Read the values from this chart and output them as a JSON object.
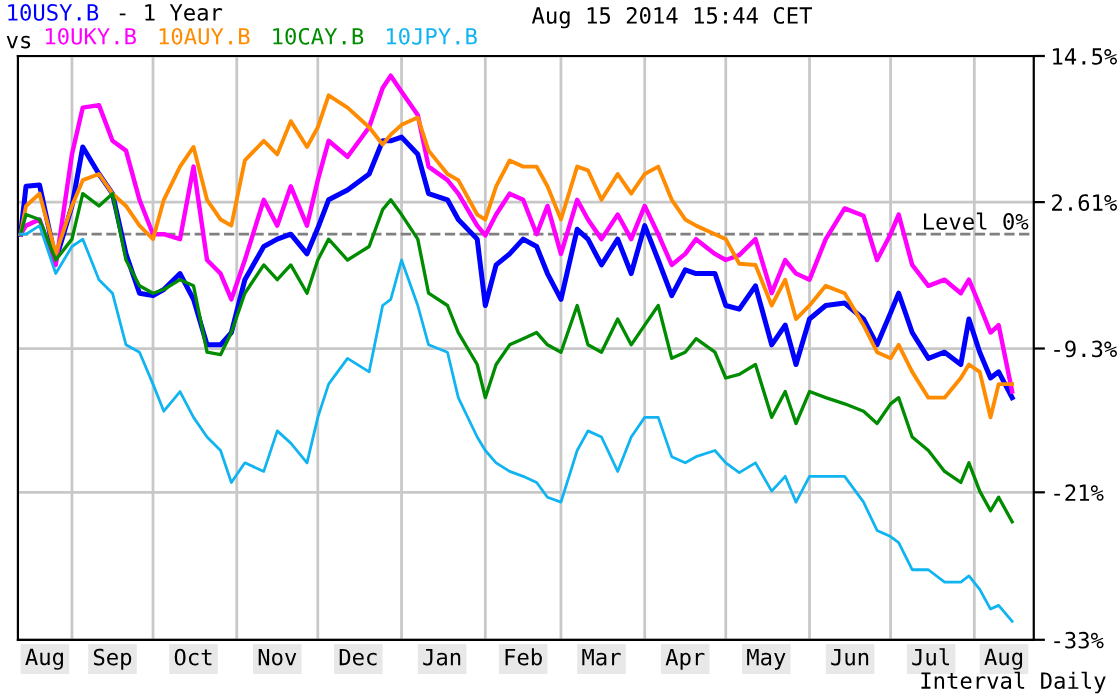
{
  "chart_data": {
    "type": "line",
    "title": "- 1 Year",
    "subtitle": "Aug 15 2014 15:44 CET",
    "legend_title": "vs",
    "x": [
      "2013-08-13",
      "2013-08-15",
      "2013-08-20",
      "2013-08-26",
      "2013-09-01",
      "2013-09-05",
      "2013-09-11",
      "2013-09-16",
      "2013-09-21",
      "2013-09-26",
      "2013-10-01",
      "2013-10-05",
      "2013-10-11",
      "2013-10-16",
      "2013-10-21",
      "2013-10-26",
      "2013-10-30",
      "2013-11-04",
      "2013-11-11",
      "2013-11-16",
      "2013-11-21",
      "2013-11-27",
      "2013-12-01",
      "2013-12-05",
      "2013-12-12",
      "2013-12-20",
      "2013-12-25",
      "2013-12-28",
      "2014-01-01",
      "2014-01-07",
      "2014-01-11",
      "2014-01-18",
      "2014-01-22",
      "2014-01-29",
      "2014-02-01",
      "2014-02-05",
      "2014-02-10",
      "2014-02-15",
      "2014-02-20",
      "2014-02-24",
      "2014-03-01",
      "2014-03-07",
      "2014-03-11",
      "2014-03-16",
      "2014-03-22",
      "2014-03-27",
      "2014-04-01",
      "2014-04-06",
      "2014-04-11",
      "2014-04-16",
      "2014-04-20",
      "2014-04-27",
      "2014-05-01",
      "2014-05-06",
      "2014-05-12",
      "2014-05-18",
      "2014-05-23",
      "2014-05-27",
      "2014-06-01",
      "2014-06-07",
      "2014-06-14",
      "2014-06-21",
      "2014-06-26",
      "2014-07-01",
      "2014-07-04",
      "2014-07-09",
      "2014-07-15",
      "2014-07-21",
      "2014-07-27",
      "2014-07-30",
      "2014-08-03",
      "2014-08-07",
      "2014-08-10",
      "2014-08-15"
    ],
    "series": [
      {
        "name": "10USY.B",
        "color": "#0000ff",
        "values": [
          0,
          3.9,
          4.0,
          -2.1,
          2.3,
          7.1,
          4.9,
          3.3,
          -1.6,
          -4.8,
          -5.0,
          -4.5,
          -3.2,
          -5.3,
          -9.0,
          -9.0,
          -8.0,
          -3.7,
          -1.0,
          -0.4,
          0.0,
          -1.6,
          0.5,
          2.8,
          3.6,
          4.9,
          7.6,
          7.6,
          7.9,
          6.5,
          3.3,
          2.8,
          1.2,
          -0.4,
          -5.8,
          -2.5,
          -1.6,
          -0.4,
          -1.0,
          -3.2,
          -5.3,
          0.4,
          -0.4,
          -2.5,
          -0.4,
          -3.2,
          0.7,
          -2.1,
          -5.0,
          -2.9,
          -3.2,
          -3.2,
          -5.8,
          -6.1,
          -4.2,
          -9.0,
          -7.4,
          -10.6,
          -6.9,
          -5.8,
          -5.6,
          -6.9,
          -9.0,
          -6.4,
          -4.8,
          -8.0,
          -10.1,
          -9.6,
          -10.6,
          -6.9,
          -9.6,
          -11.7,
          -11.2,
          -13.3
        ]
      },
      {
        "name": "10UKY.B",
        "color": "#ff00ff",
        "values": [
          0,
          0.7,
          1.2,
          -2.5,
          6.5,
          10.3,
          10.5,
          7.6,
          6.8,
          2.8,
          0.0,
          0.0,
          -0.4,
          5.5,
          -2.1,
          -3.2,
          -5.3,
          -2.1,
          2.8,
          0.7,
          3.9,
          0.7,
          4.4,
          7.6,
          6.3,
          8.7,
          11.9,
          12.9,
          11.6,
          9.7,
          5.5,
          4.4,
          3.3,
          0.7,
          -0.1,
          1.6,
          3.3,
          2.8,
          0.0,
          2.3,
          -1.6,
          2.8,
          1.2,
          -0.4,
          1.6,
          -0.4,
          2.3,
          0.0,
          -2.5,
          -1.6,
          -0.4,
          -1.6,
          -2.1,
          -1.7,
          -0.4,
          -4.8,
          -2.1,
          -3.2,
          -3.7,
          -0.4,
          2.1,
          1.5,
          -2.1,
          0.0,
          1.6,
          -2.5,
          -4.2,
          -3.7,
          -4.8,
          -3.7,
          -5.8,
          -8.0,
          -7.4,
          -12.8
        ]
      },
      {
        "name": "10AUY.B",
        "color": "#ff8c00",
        "values": [
          0,
          2.3,
          3.3,
          -1.6,
          2.3,
          4.4,
          4.9,
          3.3,
          2.3,
          0.7,
          -0.4,
          2.8,
          5.5,
          7.1,
          2.8,
          1.2,
          0.7,
          6.0,
          7.6,
          6.5,
          9.2,
          7.1,
          8.7,
          11.3,
          10.3,
          8.7,
          7.3,
          8.1,
          8.9,
          9.5,
          6.8,
          4.9,
          4.4,
          1.6,
          1.2,
          3.9,
          6.0,
          5.5,
          5.5,
          3.9,
          1.2,
          5.5,
          5.2,
          2.8,
          4.9,
          3.3,
          4.9,
          5.5,
          2.8,
          1.2,
          0.7,
          0.0,
          -0.4,
          -2.4,
          -2.5,
          -5.8,
          -3.7,
          -6.9,
          -5.8,
          -4.2,
          -4.8,
          -7.4,
          -9.6,
          -10.1,
          -9.0,
          -11.2,
          -13.3,
          -13.3,
          -11.7,
          -10.6,
          -11.2,
          -14.9,
          -12.2,
          -12.2
        ]
      },
      {
        "name": "10CAY.B",
        "color": "#008c00",
        "values": [
          0,
          1.6,
          1.2,
          -2.1,
          -0.4,
          3.3,
          2.3,
          3.3,
          -2.1,
          -4.2,
          -4.8,
          -4.5,
          -3.7,
          -4.2,
          -9.6,
          -9.8,
          -8.0,
          -4.8,
          -2.5,
          -3.7,
          -2.5,
          -4.8,
          -2.1,
          -0.4,
          -2.1,
          -1.0,
          2.0,
          2.8,
          1.6,
          -0.4,
          -4.8,
          -5.8,
          -8.0,
          -10.6,
          -13.3,
          -10.6,
          -9.0,
          -8.5,
          -8.0,
          -9.0,
          -9.6,
          -5.8,
          -9.0,
          -9.6,
          -6.9,
          -9.0,
          -7.4,
          -5.8,
          -10.1,
          -9.6,
          -8.5,
          -9.6,
          -11.7,
          -11.4,
          -10.6,
          -14.9,
          -12.8,
          -15.4,
          -12.8,
          -13.3,
          -13.8,
          -14.4,
          -15.4,
          -13.8,
          -13.3,
          -16.5,
          -17.6,
          -19.3,
          -20.2,
          -18.6,
          -20.9,
          -22.5,
          -21.4,
          -23.4
        ]
      },
      {
        "name": "10JPY.B",
        "color": "#10b4f0",
        "values": [
          0,
          0.0,
          0.7,
          -3.2,
          -1.0,
          -0.4,
          -3.7,
          -4.8,
          -9.0,
          -9.6,
          -12.2,
          -14.4,
          -12.8,
          -14.9,
          -16.5,
          -17.6,
          -20.2,
          -18.6,
          -19.3,
          -16.0,
          -17.0,
          -18.6,
          -14.9,
          -12.2,
          -10.1,
          -11.2,
          -5.8,
          -5.3,
          -2.1,
          -5.8,
          -9.0,
          -9.6,
          -13.3,
          -16.5,
          -17.6,
          -18.6,
          -19.3,
          -19.7,
          -20.2,
          -21.4,
          -21.8,
          -17.6,
          -16.0,
          -16.5,
          -19.3,
          -16.5,
          -14.9,
          -14.9,
          -18.1,
          -18.6,
          -18.1,
          -17.6,
          -18.6,
          -19.4,
          -18.6,
          -20.9,
          -19.7,
          -21.8,
          -19.7,
          -19.7,
          -19.7,
          -21.8,
          -24.1,
          -24.6,
          -25.1,
          -27.3,
          -27.3,
          -28.3,
          -28.3,
          -27.8,
          -28.9,
          -30.5,
          -30.2,
          -31.5
        ]
      }
    ],
    "xlim": [
      "2013-08-12",
      "2014-08-23"
    ],
    "xticks": [
      {
        "value": "2013-08-22",
        "label": "Aug"
      },
      {
        "value": "2013-09-01",
        "label": null
      },
      {
        "value": "2013-09-16",
        "label": "Sep"
      },
      {
        "value": "2013-10-01",
        "label": null
      },
      {
        "value": "2013-10-16",
        "label": "Oct"
      },
      {
        "value": "2013-11-01",
        "label": null
      },
      {
        "value": "2013-11-16",
        "label": "Nov"
      },
      {
        "value": "2013-12-01",
        "label": null
      },
      {
        "value": "2013-12-16",
        "label": "Dec"
      },
      {
        "value": "2014-01-01",
        "label": null
      },
      {
        "value": "2014-01-16",
        "label": "Jan"
      },
      {
        "value": "2014-02-01",
        "label": null
      },
      {
        "value": "2014-02-15",
        "label": "Feb"
      },
      {
        "value": "2014-03-01",
        "label": null
      },
      {
        "value": "2014-03-16",
        "label": "Mar"
      },
      {
        "value": "2014-04-01",
        "label": null
      },
      {
        "value": "2014-04-16",
        "label": "Apr"
      },
      {
        "value": "2014-05-01",
        "label": null
      },
      {
        "value": "2014-05-16",
        "label": "May"
      },
      {
        "value": "2014-06-01",
        "label": null
      },
      {
        "value": "2014-06-16",
        "label": "Jun"
      },
      {
        "value": "2014-07-01",
        "label": null
      },
      {
        "value": "2014-07-16",
        "label": "Jul"
      },
      {
        "value": "2014-08-01",
        "label": null
      },
      {
        "value": "2014-08-12",
        "label": "Aug"
      }
    ],
    "ylim": [
      -33,
      14.5
    ],
    "yticks": [
      {
        "value": 14.5,
        "label": "14.5%"
      },
      {
        "value": 2.61,
        "label": "2.61%"
      },
      {
        "value": -9.3,
        "label": "-9.3%"
      },
      {
        "value": -21,
        "label": "-21%"
      },
      {
        "value": -33,
        "label": "-33%"
      }
    ],
    "ref_lines": [
      {
        "axis": "y",
        "value": 0,
        "label": "Level 0%",
        "color": "#808080",
        "line_style": "dashed"
      }
    ],
    "annotations": [
      "Interval Daily"
    ],
    "grid": true,
    "legend": "top left",
    "line_style": "solid",
    "marker": "none"
  }
}
